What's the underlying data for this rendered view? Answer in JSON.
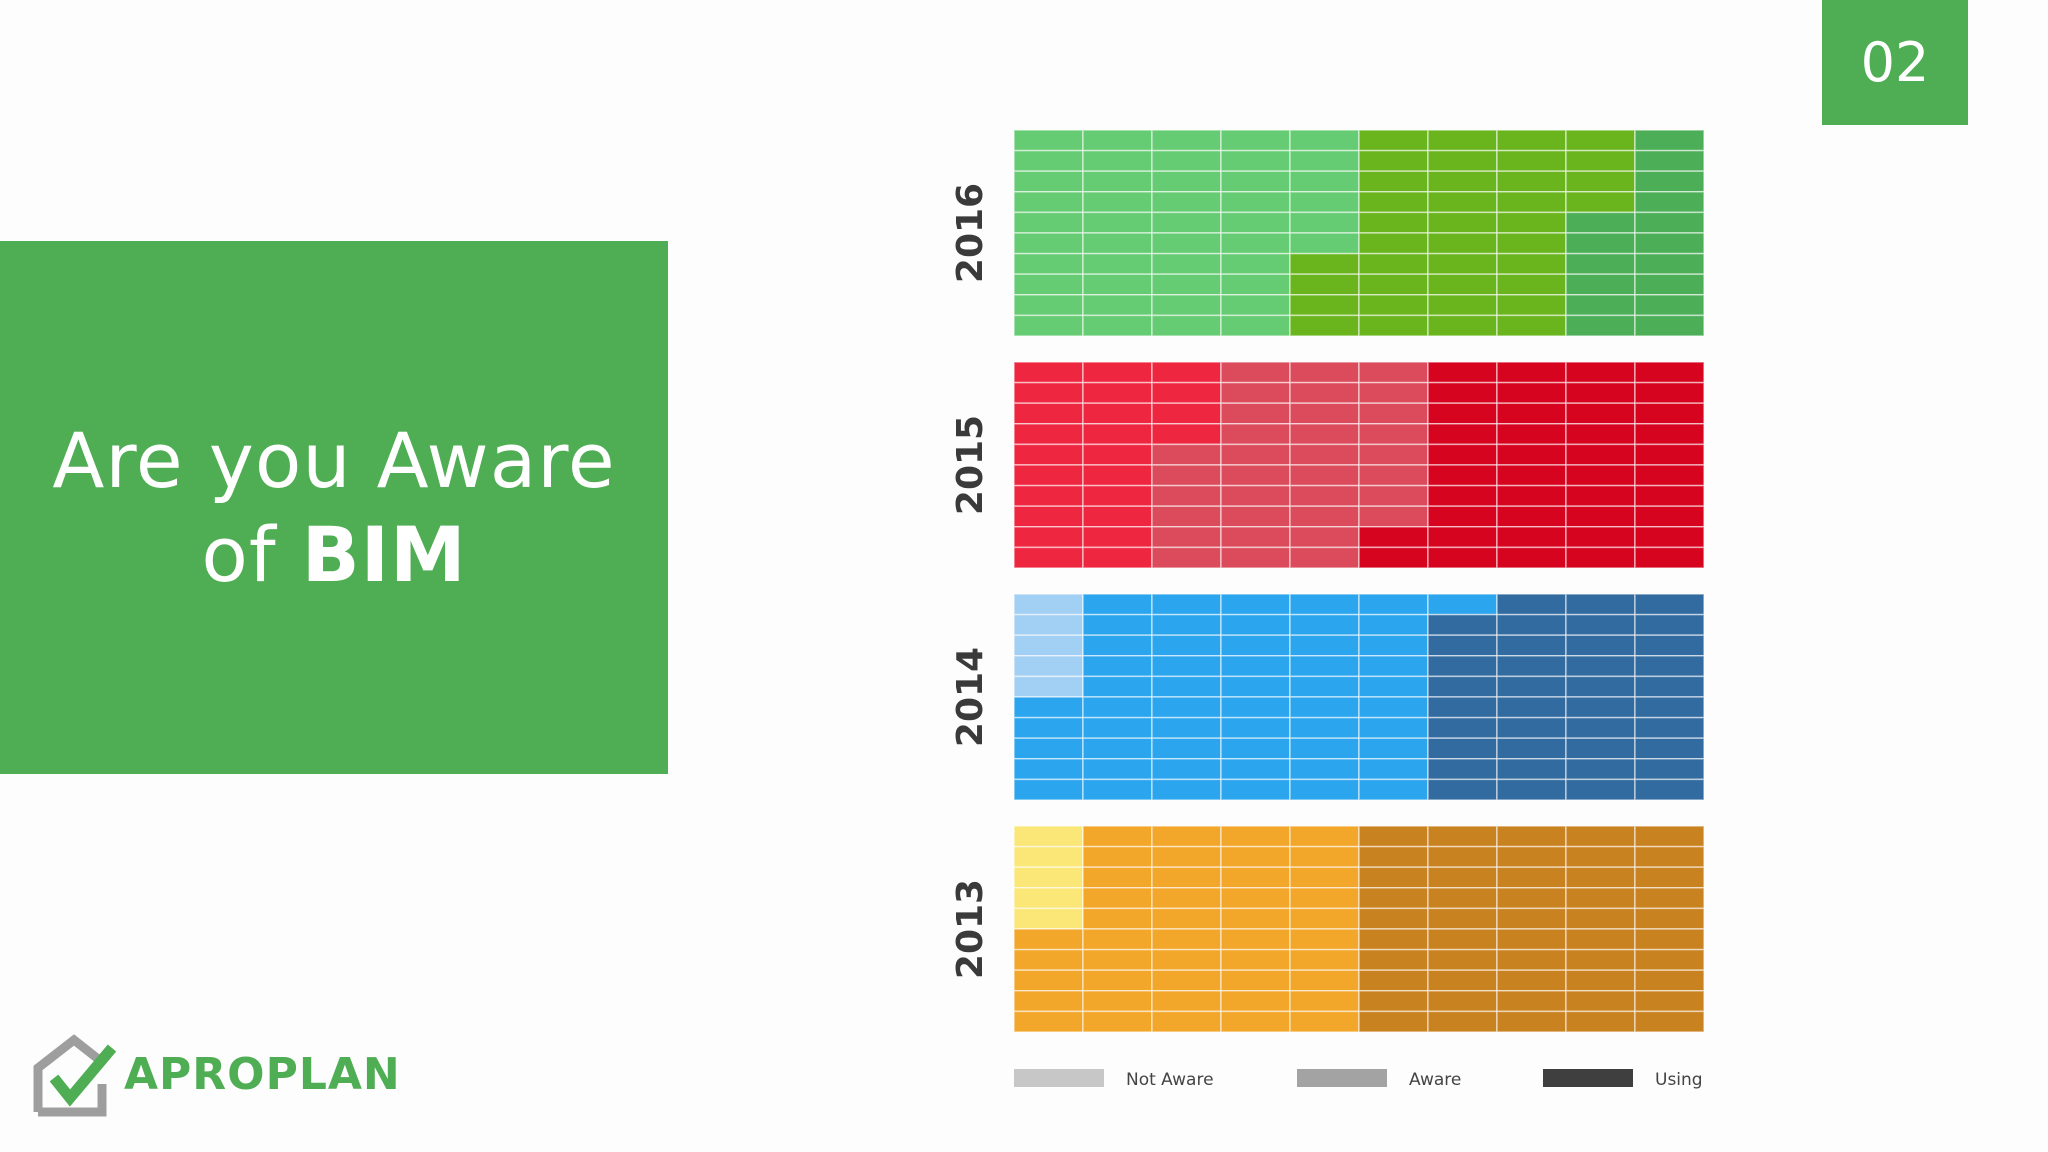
{
  "title": {
    "line1": "Are you Aware",
    "line2_prefix": "of ",
    "line2_bold": "BIM"
  },
  "page_number": "02",
  "logo": {
    "text": "APROPLAN"
  },
  "colors": {
    "accent": "#4fad54"
  },
  "chart_data": {
    "type": "waffle",
    "grid": {
      "cols": 10,
      "rows": 10
    },
    "categories": [
      "2016",
      "2015",
      "2014",
      "2013"
    ],
    "legend": {
      "entries": [
        "Not Aware",
        "Aware",
        "Using"
      ],
      "colors": [
        "#c7c7c7",
        "#a3a3a3",
        "#3f3f3f"
      ]
    },
    "series": [
      {
        "year": "2016",
        "values": {
          "Not Aware": 46,
          "Aware": 38,
          "Using": 16
        },
        "colors": [
          "#66cc73",
          "#6ab51e",
          "#4caf58"
        ]
      },
      {
        "year": "2015",
        "values": {
          "Not Aware": 24,
          "Aware": 34,
          "Using": 42
        },
        "colors": [
          "#ef2640",
          "#dc4b5c",
          "#d6041f"
        ]
      },
      {
        "year": "2014",
        "values": {
          "Not Aware": 5,
          "Aware": 56,
          "Using": 39
        },
        "colors": [
          "#a2cff4",
          "#2aa5ee",
          "#326b9f"
        ]
      },
      {
        "year": "2013",
        "values": {
          "Not Aware": 5,
          "Aware": 45,
          "Using": 50
        },
        "colors": [
          "#fbe777",
          "#f2a62a",
          "#c98220"
        ]
      }
    ]
  }
}
